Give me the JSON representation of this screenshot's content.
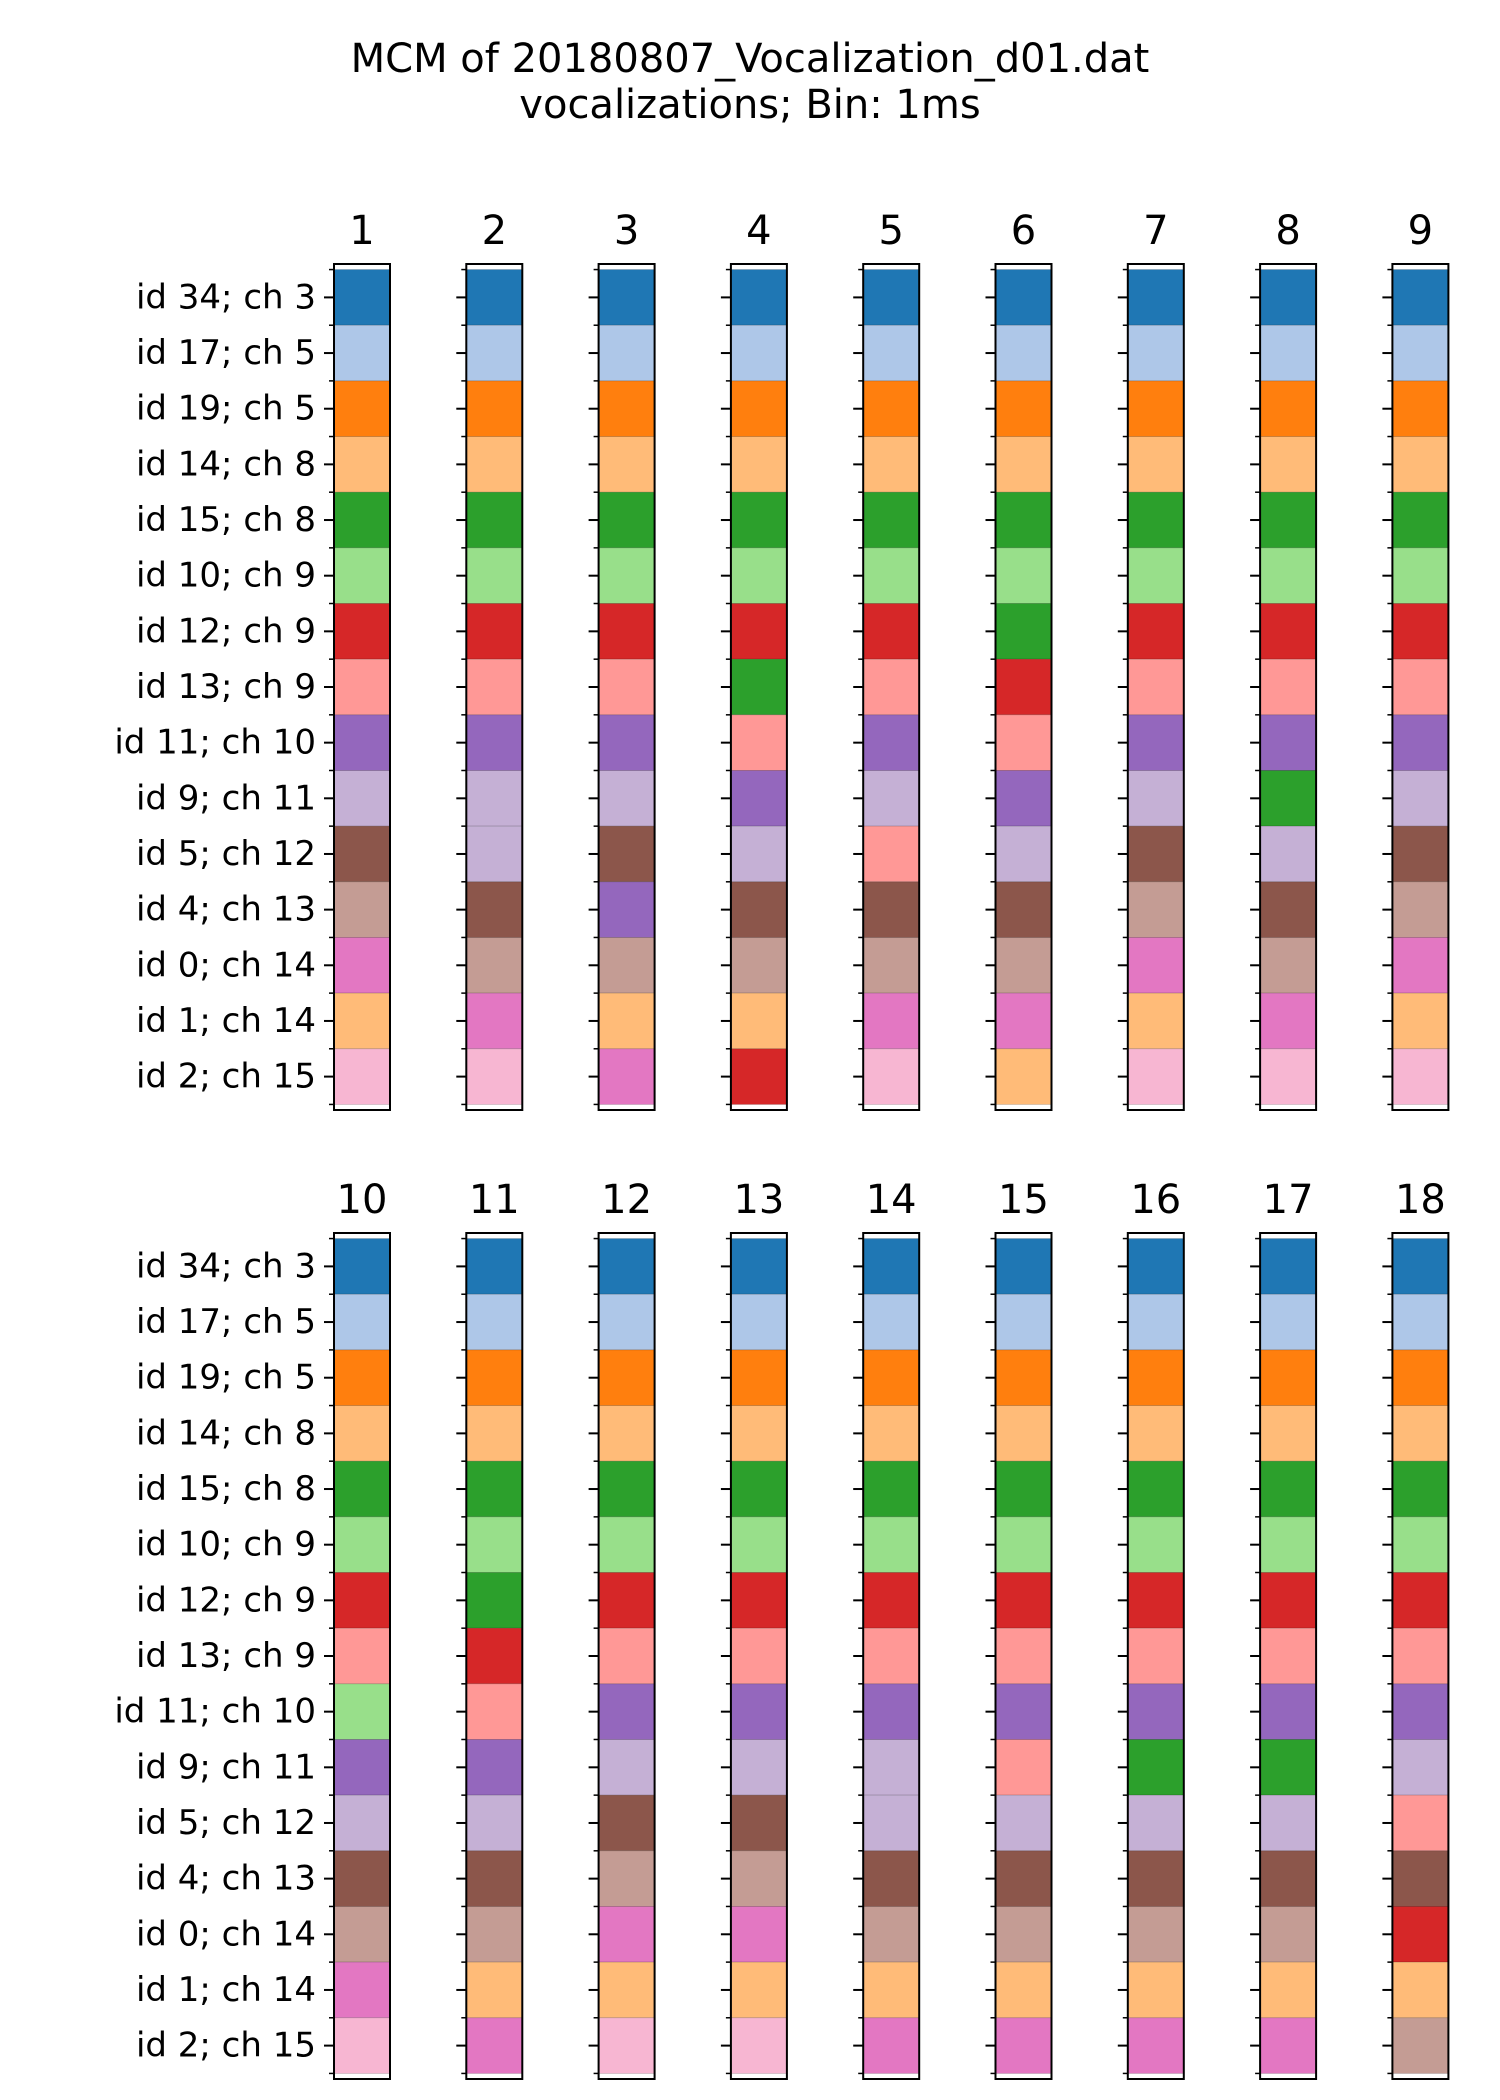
{
  "chart_data": {
    "type": "heatmap",
    "title": "MCM of 20180807_Vocalization_d01.dat",
    "subtitle": "vocalizations; Bin: 1ms",
    "row_labels": [
      "id 34; ch 3",
      "id 17; ch 5",
      "id 19; ch 5",
      "id 14; ch 8",
      "id 15; ch 8",
      "id 10; ch 9",
      "id 12; ch 9",
      "id 13; ch 9",
      "id 11; ch 10",
      "id 9; ch 11",
      "id 5; ch 12",
      "id 4; ch 13",
      "id 0; ch 14",
      "id 1; ch 14",
      "id 2; ch 15"
    ],
    "palette": {
      "0": "#1f77b4",
      "1": "#aec7e8",
      "2": "#ff7f0e",
      "3": "#ffbb78",
      "4": "#2ca02c",
      "5": "#98df8a",
      "6": "#d62728",
      "7": "#ff9896",
      "8": "#9467bd",
      "9": "#c5b0d5",
      "10": "#8c564b",
      "11": "#c49c94",
      "12": "#e377c2",
      "13": "#f7b6d2"
    },
    "columns": [
      {
        "label": "1",
        "cells": [
          0,
          1,
          2,
          3,
          4,
          5,
          6,
          7,
          8,
          9,
          10,
          11,
          12,
          3,
          13
        ]
      },
      {
        "label": "2",
        "cells": [
          0,
          1,
          2,
          3,
          4,
          5,
          6,
          7,
          8,
          9,
          9,
          10,
          11,
          12,
          13
        ]
      },
      {
        "label": "3",
        "cells": [
          0,
          1,
          2,
          3,
          4,
          5,
          6,
          7,
          8,
          9,
          10,
          8,
          11,
          3,
          12
        ]
      },
      {
        "label": "4",
        "cells": [
          0,
          1,
          2,
          3,
          4,
          5,
          6,
          4,
          7,
          8,
          9,
          10,
          11,
          3,
          6
        ]
      },
      {
        "label": "5",
        "cells": [
          0,
          1,
          2,
          3,
          4,
          5,
          6,
          7,
          8,
          9,
          7,
          10,
          11,
          12,
          13
        ]
      },
      {
        "label": "6",
        "cells": [
          0,
          1,
          2,
          3,
          4,
          5,
          4,
          6,
          7,
          8,
          9,
          10,
          11,
          12,
          3
        ]
      },
      {
        "label": "7",
        "cells": [
          0,
          1,
          2,
          3,
          4,
          5,
          6,
          7,
          8,
          9,
          10,
          11,
          12,
          3,
          13
        ]
      },
      {
        "label": "8",
        "cells": [
          0,
          1,
          2,
          3,
          4,
          5,
          6,
          7,
          8,
          4,
          9,
          10,
          11,
          12,
          13
        ]
      },
      {
        "label": "9",
        "cells": [
          0,
          1,
          2,
          3,
          4,
          5,
          6,
          7,
          8,
          9,
          10,
          11,
          12,
          3,
          13
        ]
      },
      {
        "label": "10",
        "cells": [
          0,
          1,
          2,
          3,
          4,
          5,
          6,
          7,
          5,
          8,
          9,
          10,
          11,
          12,
          13
        ]
      },
      {
        "label": "11",
        "cells": [
          0,
          1,
          2,
          3,
          4,
          5,
          4,
          6,
          7,
          8,
          9,
          10,
          11,
          3,
          12
        ]
      },
      {
        "label": "12",
        "cells": [
          0,
          1,
          2,
          3,
          4,
          5,
          6,
          7,
          8,
          9,
          10,
          11,
          12,
          3,
          13
        ]
      },
      {
        "label": "13",
        "cells": [
          0,
          1,
          2,
          3,
          4,
          5,
          6,
          7,
          8,
          9,
          10,
          11,
          12,
          3,
          13
        ]
      },
      {
        "label": "14",
        "cells": [
          0,
          1,
          2,
          3,
          4,
          5,
          6,
          7,
          8,
          9,
          9,
          10,
          11,
          3,
          12
        ]
      },
      {
        "label": "15",
        "cells": [
          0,
          1,
          2,
          3,
          4,
          5,
          6,
          7,
          8,
          7,
          9,
          10,
          11,
          3,
          12
        ]
      },
      {
        "label": "16",
        "cells": [
          0,
          1,
          2,
          3,
          4,
          5,
          6,
          7,
          8,
          4,
          9,
          10,
          11,
          3,
          12
        ]
      },
      {
        "label": "17",
        "cells": [
          0,
          1,
          2,
          3,
          4,
          5,
          6,
          7,
          8,
          4,
          9,
          10,
          11,
          3,
          12
        ]
      },
      {
        "label": "18",
        "cells": [
          0,
          1,
          2,
          3,
          4,
          5,
          6,
          7,
          8,
          9,
          7,
          10,
          6,
          3,
          11
        ]
      }
    ]
  }
}
